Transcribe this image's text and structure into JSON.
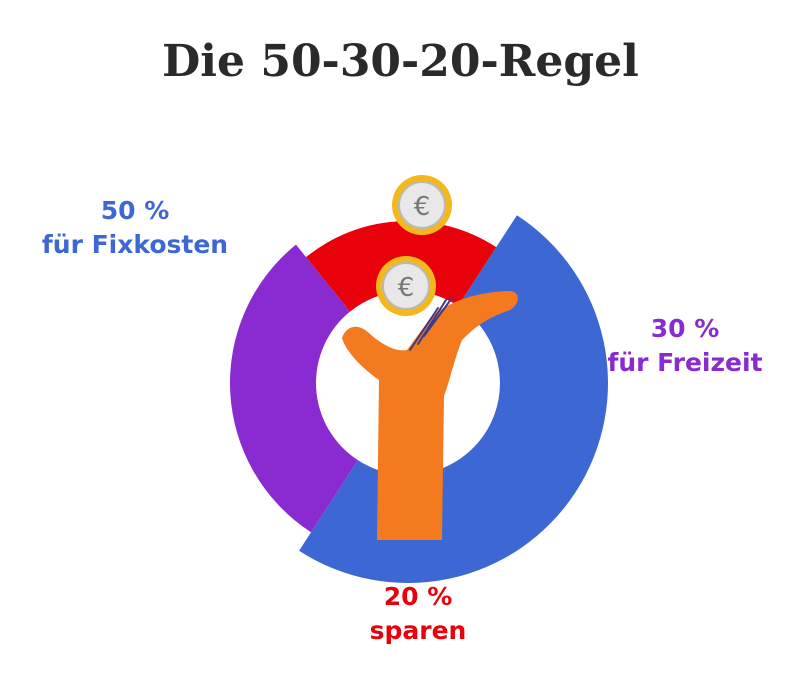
{
  "title": "Die 50-30-20-Regel",
  "chart_data": {
    "type": "pie",
    "title": "Die 50-30-20-Regel",
    "series": [
      {
        "percent_label": "50 %",
        "label": "für Fixkosten",
        "value": 50,
        "color": "#3d67d3"
      },
      {
        "percent_label": "30 %",
        "label": "für Freizeit",
        "value": 30,
        "color": "#8a2bd1"
      },
      {
        "percent_label": "20 %",
        "label": "sparen",
        "value": 20,
        "color": "#e8000b"
      }
    ]
  },
  "illustration": {
    "hand_color": "#f47a20",
    "coin_icon": "euro-coin-icon",
    "coin_symbol": "€",
    "coin_count": 2
  }
}
